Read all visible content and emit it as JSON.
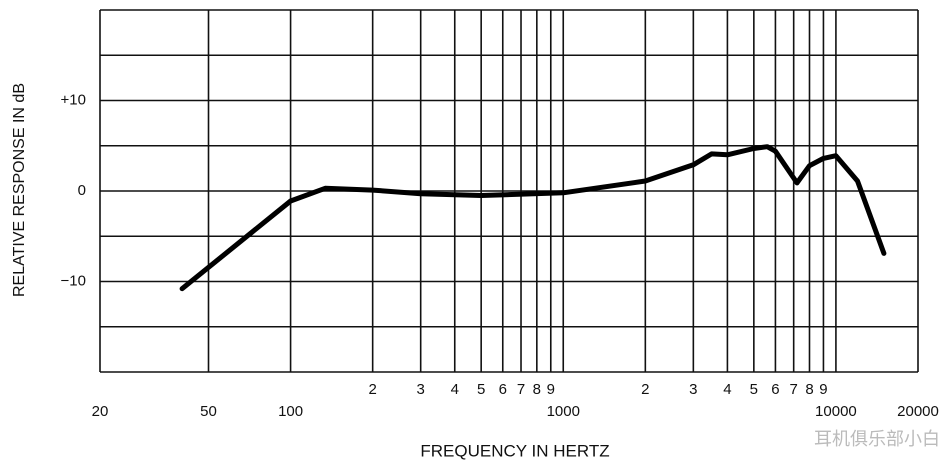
{
  "chart_data": {
    "type": "line",
    "x_label": "FREQUENCY IN HERTZ",
    "y_label": "RELATIVE RESPONSE IN dB",
    "watermark": "耳机俱乐部小白",
    "x_scale": "log",
    "xlim": [
      20,
      20000
    ],
    "ylim": [
      -20,
      20
    ],
    "xticks": [
      20,
      50,
      100,
      {
        "value": 200,
        "label": "2"
      },
      {
        "value": 300,
        "label": "3"
      },
      {
        "value": 400,
        "label": "4"
      },
      {
        "value": 500,
        "label": "5"
      },
      {
        "value": 600,
        "label": "6"
      },
      {
        "value": 700,
        "label": "7"
      },
      {
        "value": 800,
        "label": "8"
      },
      {
        "value": 900,
        "label": "9"
      },
      1000,
      {
        "value": 2000,
        "label": "2"
      },
      {
        "value": 3000,
        "label": "3"
      },
      {
        "value": 4000,
        "label": "4"
      },
      {
        "value": 5000,
        "label": "5"
      },
      {
        "value": 6000,
        "label": "6"
      },
      {
        "value": 7000,
        "label": "7"
      },
      {
        "value": 8000,
        "label": "8"
      },
      {
        "value": 9000,
        "label": "9"
      },
      10000,
      20000
    ],
    "yticks": [
      {
        "value": 10,
        "label": "+10"
      },
      0,
      {
        "value": -10,
        "label": "−10"
      }
    ],
    "ygrid": [
      -20,
      -15,
      -10,
      -5,
      0,
      5,
      10,
      15,
      20
    ],
    "grid": true,
    "color": "#000000",
    "x": [
      40,
      100,
      134,
      200,
      300,
      500,
      1000,
      2000,
      3000,
      3500,
      4000,
      5000,
      5600,
      6000,
      7200,
      8000,
      9000,
      10000,
      12000,
      15000
    ],
    "values": [
      -10.8,
      -1.1,
      0.3,
      0.1,
      -0.3,
      -0.5,
      -0.2,
      1.1,
      2.9,
      4.1,
      4.0,
      4.7,
      4.9,
      4.4,
      0.9,
      2.8,
      3.6,
      3.9,
      1.1,
      -6.9
    ]
  }
}
